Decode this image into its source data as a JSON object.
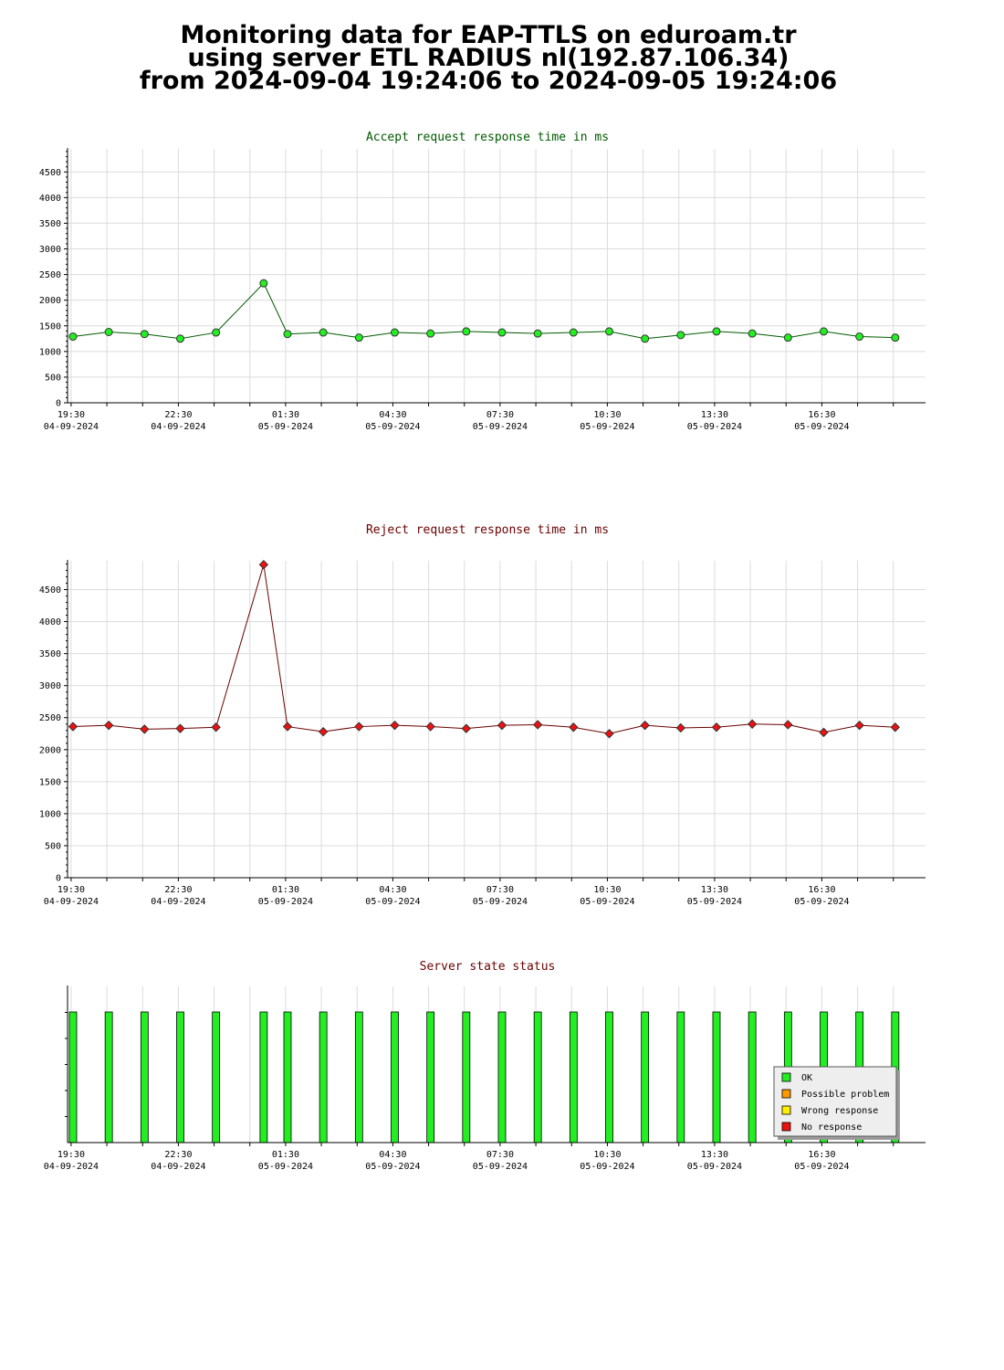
{
  "page_title": {
    "line1": "Monitoring data for EAP-TTLS on eduroam.tr",
    "line2": "using server ETL RADIUS nl(192.87.106.34)",
    "line3": "from 2024-09-04 19:24:06 to 2024-09-05 19:24:06"
  },
  "x_ticks": [
    {
      "time": "19:30",
      "date": "04-09-2024"
    },
    {
      "time": "22:30",
      "date": "04-09-2024"
    },
    {
      "time": "01:30",
      "date": "05-09-2024"
    },
    {
      "time": "04:30",
      "date": "05-09-2024"
    },
    {
      "time": "07:30",
      "date": "05-09-2024"
    },
    {
      "time": "10:30",
      "date": "05-09-2024"
    },
    {
      "time": "13:30",
      "date": "05-09-2024"
    },
    {
      "time": "16:30",
      "date": "05-09-2024"
    }
  ],
  "colors": {
    "accept_line": "#005a00",
    "accept_marker": "#22ee22",
    "reject_line": "#6a0000",
    "reject_marker": "#ee1111",
    "accept_title": "#005a00",
    "reject_title": "#6a0000",
    "status_title": "#6a0000",
    "status_ok": "#22ee22",
    "status_possible": "#ff9900",
    "status_wrong": "#ffee00",
    "status_none": "#ee1111",
    "grid": "#dcdcdc"
  },
  "chart_data": [
    {
      "type": "line",
      "title": "Accept request response time in ms",
      "x": [
        "19:24",
        "20:24",
        "21:24",
        "22:24",
        "23:24",
        "00:44",
        "01:24",
        "02:24",
        "03:24",
        "04:24",
        "05:24",
        "06:24",
        "07:24",
        "08:24",
        "09:24",
        "10:24",
        "11:24",
        "12:24",
        "13:24",
        "14:24",
        "15:24",
        "16:24",
        "17:24",
        "18:24"
      ],
      "series": [
        {
          "values": [
            1290,
            1380,
            1340,
            1250,
            1370,
            2330,
            1340,
            1370,
            1270,
            1370,
            1350,
            1390,
            1370,
            1350,
            1370,
            1390,
            1250,
            1320,
            1390,
            1350,
            1270,
            1390,
            1290,
            1270
          ]
        }
      ],
      "ylim": [
        0,
        4950
      ],
      "yticks": [
        0,
        500,
        1000,
        1500,
        2000,
        2500,
        3000,
        3500,
        4000,
        4500
      ],
      "grid": true
    },
    {
      "type": "line",
      "title": "Reject request response time in ms",
      "x": [
        "19:24",
        "20:24",
        "21:24",
        "22:24",
        "23:24",
        "00:44",
        "01:24",
        "02:24",
        "03:24",
        "04:24",
        "05:24",
        "06:24",
        "07:24",
        "08:24",
        "09:24",
        "10:24",
        "11:24",
        "12:24",
        "13:24",
        "14:24",
        "15:24",
        "16:24",
        "17:24",
        "18:24"
      ],
      "series": [
        {
          "values": [
            2360,
            2380,
            2320,
            2330,
            2350,
            4890,
            2360,
            2280,
            2360,
            2380,
            2360,
            2330,
            2380,
            2390,
            2350,
            2250,
            2380,
            2340,
            2350,
            2400,
            2390,
            2270,
            2380,
            2350
          ]
        }
      ],
      "ylim": [
        0,
        4950
      ],
      "yticks": [
        0,
        500,
        1000,
        1500,
        2000,
        2500,
        3000,
        3500,
        4000,
        4500
      ],
      "grid": true
    },
    {
      "type": "bar",
      "title": "Server state status",
      "x": [
        "19:24",
        "20:24",
        "21:24",
        "22:24",
        "23:24",
        "00:44",
        "01:24",
        "02:24",
        "03:24",
        "04:24",
        "05:24",
        "06:24",
        "07:24",
        "08:24",
        "09:24",
        "10:24",
        "11:24",
        "12:24",
        "13:24",
        "14:24",
        "15:24",
        "16:24",
        "17:24",
        "18:24"
      ],
      "states": [
        "OK",
        "OK",
        "OK",
        "OK",
        "OK",
        "OK",
        "OK",
        "OK",
        "OK",
        "OK",
        "OK",
        "OK",
        "OK",
        "OK",
        "OK",
        "OK",
        "OK",
        "OK",
        "OK",
        "OK",
        "OK",
        "OK",
        "OK",
        "OK"
      ],
      "legend": [
        "OK",
        "Possible problem",
        "Wrong response",
        "No response"
      ],
      "legend_position": "bottom-right"
    }
  ]
}
